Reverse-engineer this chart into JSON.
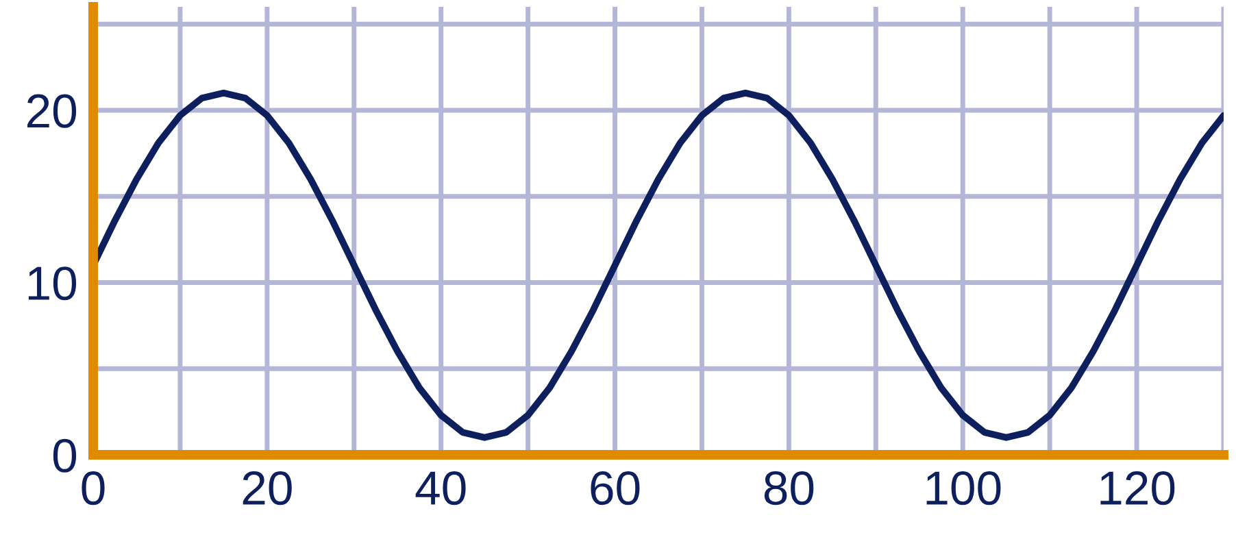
{
  "chart_data": {
    "type": "line",
    "x": [
      0,
      2.5,
      5,
      7.5,
      10,
      12.5,
      15,
      17.5,
      20,
      22.5,
      25,
      27.5,
      30,
      32.5,
      35,
      37.5,
      40,
      42.5,
      45,
      47.5,
      50,
      52.5,
      55,
      57.5,
      60,
      62.5,
      65,
      67.5,
      70,
      72.5,
      75,
      77.5,
      80,
      82.5,
      85,
      87.5,
      90,
      92.5,
      95,
      97.5,
      100,
      102.5,
      105,
      107.5,
      110,
      112.5,
      115,
      117.5,
      120,
      122.5,
      125,
      127.5,
      130
    ],
    "series": [
      {
        "color": "#0d1f5c",
        "values": [
          11,
          13.6,
          16,
          18.1,
          19.7,
          20.7,
          21,
          20.7,
          19.7,
          18.1,
          16,
          13.6,
          11,
          8.4,
          6,
          3.9,
          2.3,
          1.3,
          1,
          1.3,
          2.3,
          3.9,
          6,
          8.4,
          11,
          13.6,
          16,
          18.1,
          19.7,
          20.7,
          21,
          20.7,
          19.7,
          18.1,
          16,
          13.6,
          11,
          8.4,
          6,
          3.9,
          2.3,
          1.3,
          1,
          1.3,
          2.3,
          3.9,
          6,
          8.4,
          11,
          13.6,
          16,
          18.1,
          19.7
        ]
      }
    ],
    "xlim": [
      0,
      130
    ],
    "ylim": [
      0,
      26
    ],
    "xticks": [
      0,
      {
        "value": 10,
        "label": null
      },
      20,
      {
        "value": 30,
        "label": null
      },
      40,
      {
        "value": 50,
        "label": null
      },
      60,
      {
        "value": 70,
        "label": null
      },
      80,
      {
        "value": 90,
        "label": null
      },
      100,
      {
        "value": 110,
        "label": null
      },
      120,
      {
        "value": 130,
        "label": null
      }
    ],
    "yticks": [
      0,
      {
        "value": 5,
        "label": null
      },
      10,
      {
        "value": 15,
        "label": null
      },
      20,
      {
        "value": 25,
        "label": null
      }
    ],
    "grid": true,
    "marker": "none",
    "line_style": "solid"
  }
}
